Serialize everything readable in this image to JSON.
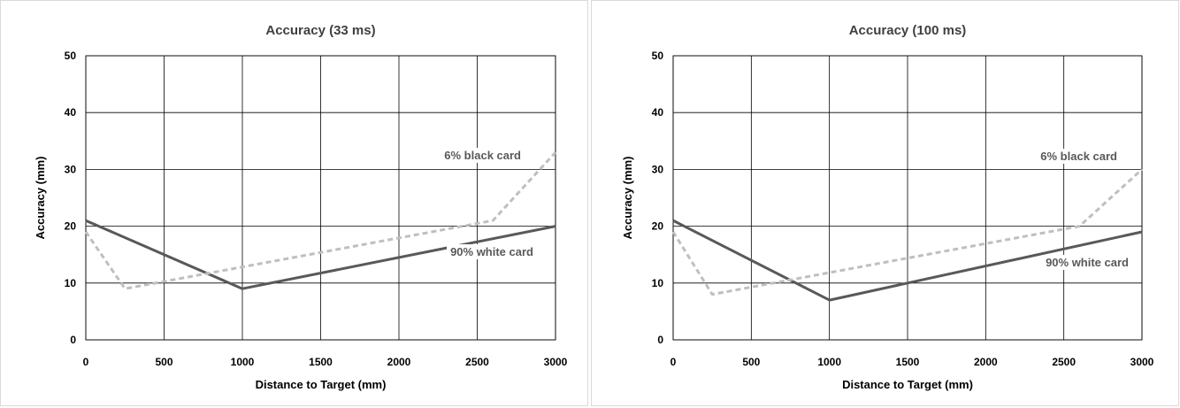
{
  "chart_data": [
    {
      "type": "line",
      "title": "Accuracy (33 ms)",
      "xlabel": "Distance to Target (mm)",
      "ylabel": "Accuracy (mm)",
      "xlim": [
        0,
        3000
      ],
      "ylim": [
        0,
        50
      ],
      "xticks": [
        "0",
        "500",
        "1000",
        "1500",
        "2000",
        "2500",
        "3000"
      ],
      "yticks": [
        "0",
        "10",
        "20",
        "30",
        "40",
        "50"
      ],
      "grid": true,
      "series": [
        {
          "name": "90% white card",
          "style": "solid",
          "color": "#595959",
          "x": [
            0,
            1000,
            3000
          ],
          "y": [
            21,
            9,
            20
          ]
        },
        {
          "name": "6% black card",
          "style": "dashed",
          "color": "#bfbfbf",
          "x": [
            0,
            250,
            2600,
            3000
          ],
          "y": [
            19,
            9,
            21,
            33
          ]
        }
      ]
    },
    {
      "type": "line",
      "title": "Accuracy (100 ms)",
      "xlabel": "Distance to Target (mm)",
      "ylabel": "Accuracy (mm)",
      "xlim": [
        0,
        3000
      ],
      "ylim": [
        0,
        50
      ],
      "xticks": [
        "0",
        "500",
        "1000",
        "1500",
        "2000",
        "2500",
        "3000"
      ],
      "yticks": [
        "0",
        "10",
        "20",
        "30",
        "40",
        "50"
      ],
      "grid": true,
      "series": [
        {
          "name": "90% white card",
          "style": "solid",
          "color": "#595959",
          "x": [
            0,
            1000,
            3000
          ],
          "y": [
            21,
            7,
            19
          ]
        },
        {
          "name": "6% black card",
          "style": "dashed",
          "color": "#bfbfbf",
          "x": [
            0,
            250,
            2600,
            3000
          ],
          "y": [
            19,
            8,
            20,
            30
          ]
        }
      ]
    }
  ]
}
